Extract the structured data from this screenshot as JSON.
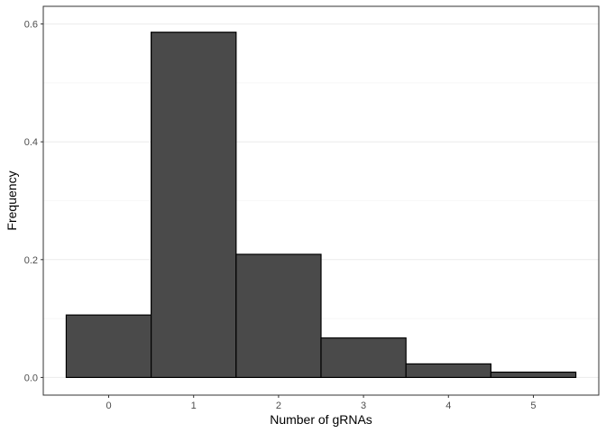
{
  "chart_data": {
    "type": "bar",
    "categories": [
      "0",
      "1",
      "2",
      "3",
      "4",
      "5"
    ],
    "x": [
      0,
      1,
      2,
      3,
      4,
      5
    ],
    "values": [
      0.106,
      0.586,
      0.209,
      0.067,
      0.023,
      0.009
    ],
    "xlabel": "Number of gRNAs",
    "ylabel": "Frequency",
    "xlim": [
      -0.5,
      5.5
    ],
    "ylim": [
      0,
      0.6
    ],
    "yticks": [
      0.0,
      0.2,
      0.4,
      0.6
    ],
    "ytick_labels": [
      "0.0",
      "0.2",
      "0.4",
      "0.6"
    ],
    "xticks": [
      0,
      1,
      2,
      3,
      4,
      5
    ],
    "xtick_labels": [
      "0",
      "1",
      "2",
      "3",
      "4",
      "5"
    ],
    "grid": true,
    "legend": "none",
    "colors": {
      "bar_fill": "#4a4a4a",
      "bar_stroke": "#000000",
      "grid_major": "#ebebeb",
      "grid_minor": "#f2f2f2",
      "panel_border": "#333333"
    }
  }
}
